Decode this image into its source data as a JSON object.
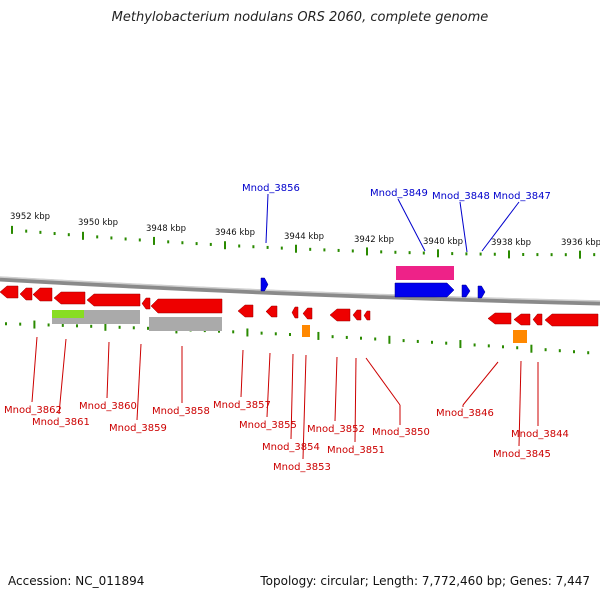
{
  "title": "Methylobacterium nodulans ORS 2060, complete genome",
  "footer": {
    "accession": "Accession: NC_011894",
    "topology": "Topology: circular; Length: 7,772,460 bp; Genes: 7,447"
  },
  "colors": {
    "forward_gene": "#0000ee",
    "reverse_gene": "#ee0000",
    "pseudo_gene": "#aaaaaa",
    "rna_gene": "#ff8800",
    "tick": "#2a8a00",
    "backbone": "#777777"
  },
  "kbp_ticks": [
    {
      "label": "3952 kbp"
    },
    {
      "label": "3950 kbp"
    },
    {
      "label": "3948 kbp"
    },
    {
      "label": "3946 kbp"
    },
    {
      "label": "3944 kbp"
    },
    {
      "label": "3942 kbp"
    },
    {
      "label": "3940 kbp"
    },
    {
      "label": "3938 kbp"
    },
    {
      "label": "3936 kbp"
    }
  ],
  "forward_labels": [
    "Mnod_3856",
    "Mnod_3849",
    "Mnod_3848",
    "Mnod_3847"
  ],
  "reverse_labels": [
    "Mnod_3862",
    "Mnod_3861",
    "Mnod_3860",
    "Mnod_3859",
    "Mnod_3858",
    "Mnod_3857",
    "Mnod_3855",
    "Mnod_3854",
    "Mnod_3853",
    "Mnod_3852",
    "Mnod_3851",
    "Mnod_3850",
    "Mnod_3846",
    "Mnod_3845",
    "Mnod_3844"
  ]
}
